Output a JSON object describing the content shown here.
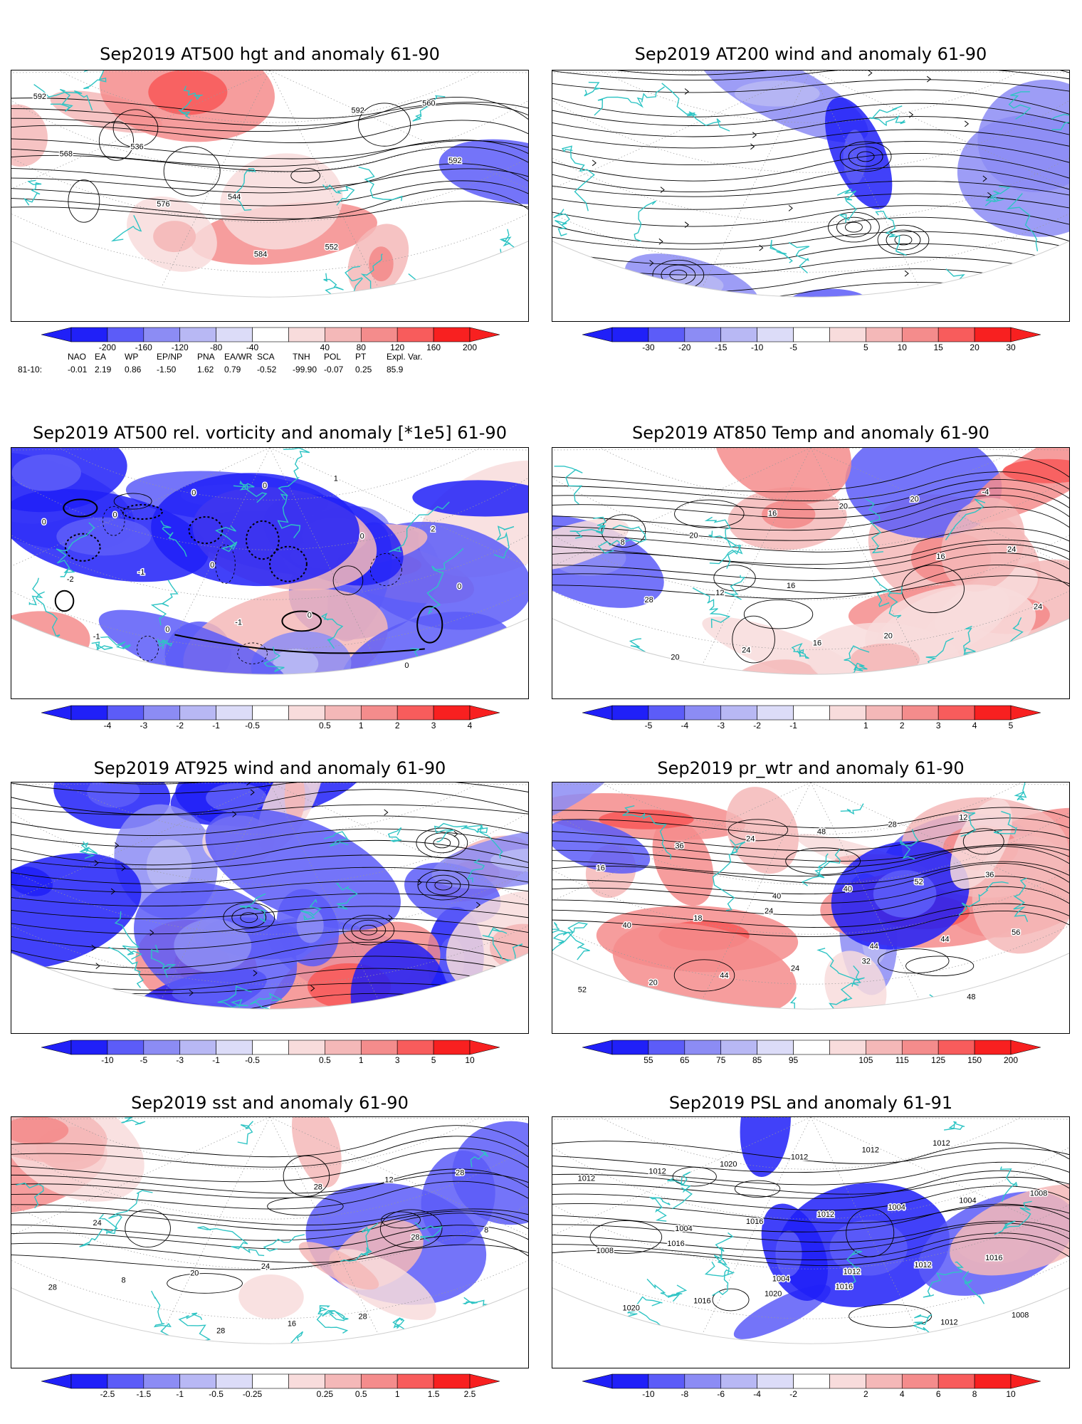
{
  "colors": {
    "coastline": "#2ec4c4",
    "contour": "#000000",
    "warm": "#f24848",
    "cool": "#4848f2",
    "grid": "#999999"
  },
  "panels": [
    {
      "id": "at500-hgt",
      "title": "Sep2019 AT500 hgt and anomaly 61-90",
      "colorbar_ticks": [
        "-200",
        "-160",
        "-120",
        "-80",
        "-40",
        "40",
        "80",
        "120",
        "160",
        "200"
      ],
      "contour_labels": [
        "592",
        "536",
        "544",
        "552",
        "560",
        "568",
        "576",
        "584",
        "592",
        "592"
      ]
    },
    {
      "id": "at200-wind",
      "title": "Sep2019 AT200 wind and anomaly 61-90",
      "colorbar_ticks": [
        "-30",
        "-20",
        "-15",
        "-10",
        "-5",
        "5",
        "10",
        "15",
        "20",
        "30"
      ],
      "contour_labels": []
    },
    {
      "id": "at500-vort",
      "title": "Sep2019 AT500 rel. vorticity and anomaly [*1e5] 61-90",
      "colorbar_ticks": [
        "-4",
        "-3",
        "-2",
        "-1",
        "-0.5",
        "0.5",
        "1",
        "2",
        "3",
        "4"
      ],
      "contour_labels": [
        "0",
        "0",
        "0",
        "0",
        "0",
        "-1",
        "-1",
        "1",
        "2",
        "-2",
        "0",
        "0",
        "0",
        "0",
        "-1",
        "0"
      ]
    },
    {
      "id": "at850-temp",
      "title": "Sep2019 AT850 Temp and anomaly 61-90",
      "colorbar_ticks": [
        "-5",
        "-4",
        "-3",
        "-2",
        "-1",
        "1",
        "2",
        "3",
        "4",
        "5"
      ],
      "contour_labels": [
        "20",
        "16",
        "20",
        "-4",
        "8",
        "12",
        "16",
        "20",
        "24",
        "28",
        "24",
        "20",
        "16",
        "24",
        "20",
        "16"
      ]
    },
    {
      "id": "at925-wind",
      "title": "Sep2019 AT925 wind and anomaly 61-90",
      "colorbar_ticks": [
        "-10",
        "-5",
        "-3",
        "-1",
        "-0.5",
        "0.5",
        "1",
        "3",
        "5",
        "10"
      ],
      "contour_labels": []
    },
    {
      "id": "pr-wtr",
      "title": "Sep2019 pr_wtr and anomaly 61-90",
      "colorbar_ticks": [
        "55",
        "65",
        "75",
        "85",
        "95",
        "105",
        "115",
        "125",
        "150",
        "200"
      ],
      "contour_labels": [
        "24",
        "32",
        "12",
        "16",
        "18",
        "24",
        "28",
        "36",
        "40",
        "44",
        "48",
        "52",
        "56",
        "20",
        "24",
        "40",
        "44",
        "52",
        "36",
        "40",
        "44",
        "48"
      ]
    },
    {
      "id": "sst",
      "title": "Sep2019 sst and anomaly 61-90",
      "colorbar_ticks": [
        "-2.5",
        "-1.5",
        "-1",
        "-0.5",
        "-0.25",
        "0.25",
        "0.5",
        "1",
        "1.5",
        "2.5"
      ],
      "contour_labels": [
        "24",
        "28",
        "28",
        "24",
        "20",
        "16",
        "12",
        "8",
        "8",
        "28",
        "28",
        "28",
        "28"
      ]
    },
    {
      "id": "psl",
      "title": "Sep2019 PSL and anomaly 61-91",
      "colorbar_ticks": [
        "-10",
        "-8",
        "-6",
        "-4",
        "-2",
        "2",
        "4",
        "6",
        "8",
        "10"
      ],
      "contour_labels": [
        "1016",
        "1012",
        "1008",
        "1016",
        "1020",
        "1012",
        "1004",
        "1008",
        "1016",
        "1012",
        "1004",
        "1016",
        "1020",
        "1020",
        "1012",
        "1012",
        "1008",
        "1012",
        "1016",
        "1012",
        "1012",
        "1012",
        "1004",
        "1004"
      ]
    }
  ],
  "teleconnections": {
    "header": [
      "NAO",
      "EA",
      "WP",
      "EP/NP",
      "PNA",
      "EA/WR",
      "SCA",
      "TNH",
      "POL",
      "PT",
      "Expl. Var."
    ],
    "row_label": "81-10:",
    "values": [
      "-0.01",
      "2.19",
      "0.86",
      "-1.50",
      "1.62",
      "0.79",
      "-0.52",
      "-99.90",
      "-0.07",
      "0.25",
      "85.9"
    ]
  }
}
